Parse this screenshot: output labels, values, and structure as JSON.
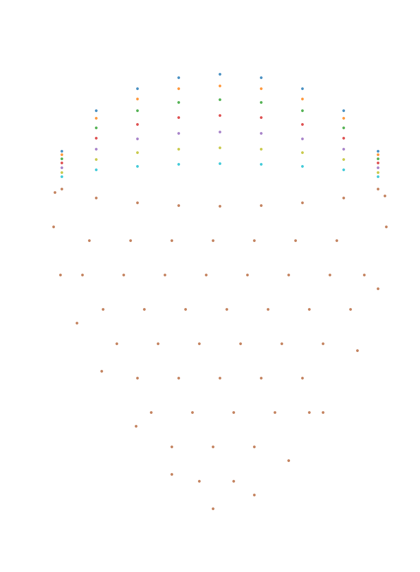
{
  "chart_data": {
    "type": "scatter",
    "xlim": [
      0,
      611
    ],
    "ylim": [
      0,
      832
    ],
    "tick_labels": false,
    "grid": false,
    "marker": "circle",
    "series": [
      {
        "color": "#b5653a",
        "x": [
          80,
          78,
          88,
          112,
          148,
          198,
          250,
          310,
          370,
          420,
          470,
          520,
          550,
          562,
          560,
          130,
          190,
          250,
          310,
          370,
          430,
          490,
          120,
          180,
          240,
          300,
          360,
          420,
          480,
          530,
          150,
          210,
          270,
          330,
          390,
          450,
          510,
          170,
          230,
          290,
          350,
          410,
          470,
          200,
          260,
          320,
          380,
          440,
          220,
          280,
          340,
          400,
          450,
          250,
          310,
          370,
          290,
          340,
          90,
          140,
          200,
          260,
          320,
          380,
          440,
          500,
          550
        ],
        "values": [
          552,
          502,
          432,
          362,
          292,
          212,
          142,
          92,
          112,
          162,
          232,
          322,
          412,
          502,
          547,
          482,
          482,
          482,
          482,
          482,
          482,
          482,
          432,
          432,
          432,
          432,
          432,
          432,
          432,
          432,
          382,
          382,
          382,
          382,
          382,
          382,
          382,
          332,
          332,
          332,
          332,
          332,
          332,
          282,
          282,
          282,
          282,
          282,
          232,
          232,
          232,
          232,
          232,
          182,
          182,
          182,
          132,
          132,
          557,
          544,
          537,
          533,
          532,
          533,
          537,
          544,
          557
        ]
      },
      {
        "color": "#17becf",
        "x": [
          90,
          140,
          200,
          260,
          320,
          380,
          440,
          500,
          550
        ],
        "values": [
          575,
          585,
          590,
          593,
          594,
          593,
          590,
          585,
          575
        ]
      },
      {
        "color": "#bcbd22",
        "x": [
          90,
          140,
          200,
          260,
          320,
          380,
          440,
          500,
          550
        ],
        "values": [
          581,
          600,
          610,
          615,
          617,
          615,
          610,
          600,
          581
        ]
      },
      {
        "color": "#9467bd",
        "x": [
          90,
          140,
          200,
          260,
          320,
          380,
          440,
          500,
          550
        ],
        "values": [
          588,
          615,
          630,
          638,
          640,
          638,
          630,
          615,
          588
        ]
      },
      {
        "color": "#d62728",
        "x": [
          90,
          140,
          200,
          260,
          320,
          380,
          440,
          500,
          550
        ],
        "values": [
          595,
          631,
          651,
          661,
          664,
          661,
          651,
          631,
          595
        ]
      },
      {
        "color": "#2ca02c",
        "x": [
          90,
          140,
          200,
          260,
          320,
          380,
          440,
          500,
          550
        ],
        "values": [
          601,
          646,
          671,
          683,
          687,
          683,
          671,
          646,
          601
        ]
      },
      {
        "color": "#ff7f0e",
        "x": [
          90,
          140,
          200,
          260,
          320,
          380,
          440,
          500,
          550
        ],
        "values": [
          607,
          660,
          688,
          703,
          707,
          703,
          688,
          660,
          607
        ]
      },
      {
        "color": "#1f77b4",
        "x": [
          90,
          140,
          200,
          260,
          320,
          380,
          440,
          500,
          550
        ],
        "values": [
          612,
          671,
          703,
          719,
          724,
          719,
          703,
          671,
          612
        ]
      }
    ]
  }
}
